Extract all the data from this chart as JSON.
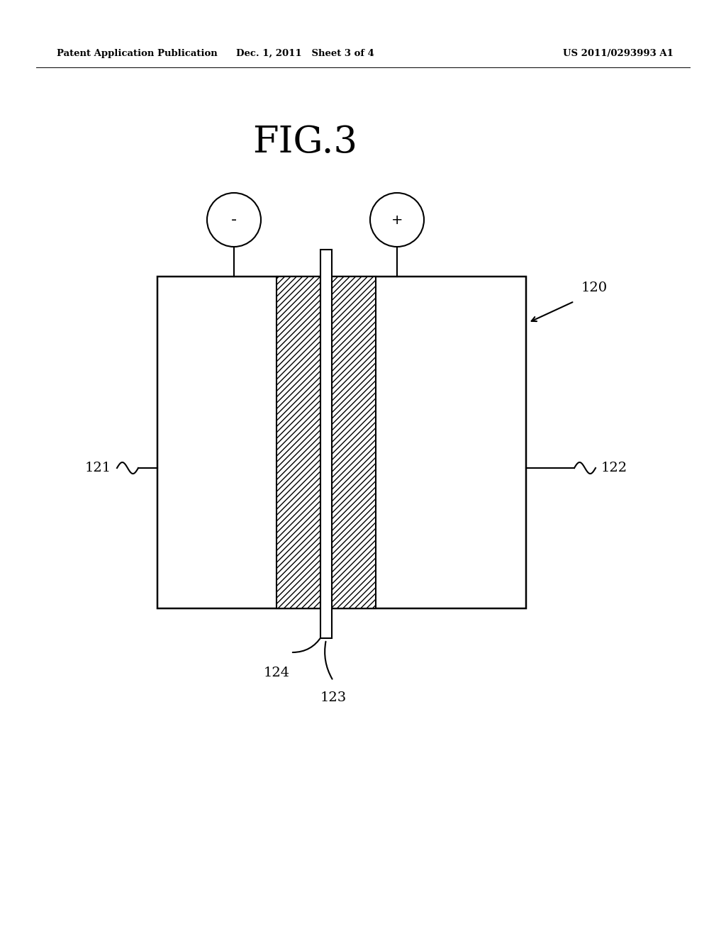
{
  "bg_color": "#ffffff",
  "header_left": "Patent Application Publication",
  "header_mid": "Dec. 1, 2011   Sheet 3 of 4",
  "header_right": "US 2011/0293993 A1",
  "fig_title": "FIG.3",
  "label_120": "120",
  "label_121": "121",
  "label_122": "122",
  "label_123": "123",
  "label_124": "124",
  "minus_symbol": "-",
  "plus_symbol": "+",
  "line_color": "#000000",
  "lw": 1.5
}
